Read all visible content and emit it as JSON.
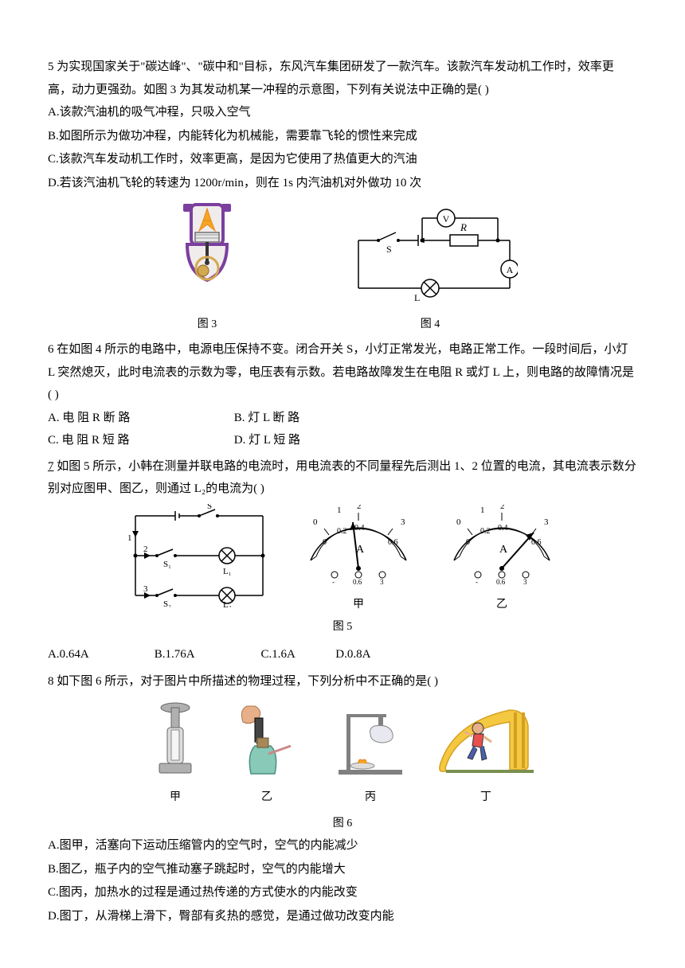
{
  "q5": {
    "stem1": "5 为实现国家关于\"碳达峰\"、\"碳中和\"目标，东风汽车集团研发了一款汽车。该款汽车发动机工作时，效率更高，动力更强劲。如图 3 为其发动机某一冲程的示意图，下列有关说法中正确的是( )",
    "optA": "A.该款汽油机的吸气冲程，只吸入空气",
    "optB": "B.如图所示为做功冲程，内能转化为机械能，需要靠飞轮的惯性来完成",
    "optC": "C.该款汽车发动机工作时，效率更高，是因为它使用了热值更大的汽油",
    "optD": "D.若该汽油机飞轮的转速为 1200r/min，则在 1s 内汽油机对外做功 10 次",
    "fig3_label": "图 3",
    "fig4_label": "图 4"
  },
  "q6": {
    "stem": "6 在如图 4 所示的电路中，电源电压保持不变。闭合开关 S，小灯正常发光，电路正常工作。一段时间后，小灯 L 突然熄灭，此时电流表的示数为零，电压表有示数。若电路故障发生在电阻 R 或灯 L 上，则电路的故障情况是( )",
    "optA": "A. 电 阻  R  断 路",
    "optB": "B. 灯  L 断  路",
    "optC": "C. 电 阻 R 短 路",
    "optD": "D. 灯 L 短 路"
  },
  "q7": {
    "stem": "7 如图 5 所示，小韩在测量并联电路的电流时，用电流表的不同量程先后测出 1、2 位置的电流，其电流表示数分别对应图甲、图乙，则通过 L₂的电流为( )",
    "fig5_label": "图 5",
    "sub_jia": "甲",
    "sub_yi": "乙",
    "optA": "A.0.64A",
    "optB": "B.1.76A",
    "optC": "C.1.6A",
    "optD": "D.0.8A"
  },
  "q8": {
    "stem": "8 如下图 6 所示，对于图片中所描述的物理过程，下列分析中不正确的是( )",
    "fig6_label": "图 6",
    "sub_jia": "甲",
    "sub_yi": "乙",
    "sub_bing": "丙",
    "sub_ding": "丁",
    "optA": "A.图甲，活塞向下运动压缩管内的空气时，空气的内能减少",
    "optB": "B.图乙，瓶子内的空气推动塞子跳起时，空气的内能增大",
    "optC": "C.图丙，加热水的过程是通过热传递的方式使水的内能改变",
    "optD": "D.图丁，从滑梯上滑下，臀部有炙热的感觉，是通过做功改变内能"
  },
  "style": {
    "engine_colors": {
      "body": "#7b3f9e",
      "piston": "#e8e8e8",
      "flame": "#f5a623",
      "crank": "#d4a850"
    },
    "circuit_color": "#000000",
    "meter_colors": {
      "scale": "#000",
      "needle": "#000"
    },
    "fig6": {
      "jia_color": "#b0b0b0",
      "yi_bottle": "#88c9b8",
      "yi_hand": "#e8b088",
      "bing_stand": "#808080",
      "ding_slide": "#f5c842",
      "ding_shirt": "#e85050",
      "ding_pants": "#4a5fb0"
    }
  }
}
